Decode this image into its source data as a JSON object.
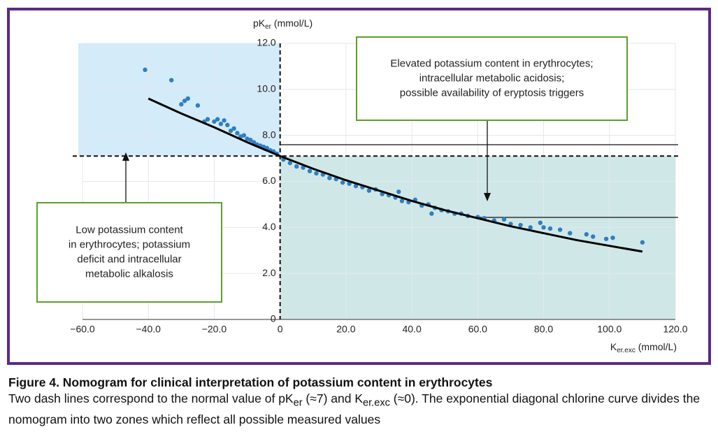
{
  "chart_data": {
    "type": "scatter",
    "y_label": {
      "main": "pK",
      "sub": "er",
      "unit": " (mmol/L)"
    },
    "x_label": {
      "main": "K",
      "sub": "er.exc",
      "unit": " (mmol/L)"
    },
    "xlim": [
      -60,
      120
    ],
    "xticks": [
      {
        "value": -60,
        "label": "−60.0"
      },
      {
        "value": -40,
        "label": "−40.0"
      },
      {
        "value": -20,
        "label": "−20.0"
      },
      0,
      {
        "value": 20,
        "label": "20.0"
      },
      {
        "value": 40,
        "label": "40.0"
      },
      {
        "value": 60,
        "label": "60.0"
      },
      {
        "value": 80,
        "label": "80.0"
      },
      {
        "value": 100,
        "label": "100.0"
      },
      {
        "value": 120,
        "label": "120.0"
      }
    ],
    "ylim": [
      0,
      12
    ],
    "yticks": [
      0,
      {
        "value": 2,
        "label": "2.0"
      },
      {
        "value": 4,
        "label": "4.0"
      },
      {
        "value": 6,
        "label": "6.0"
      },
      {
        "value": 8,
        "label": "8.0"
      },
      {
        "value": 10,
        "label": "10.0"
      },
      {
        "value": 12,
        "label": "12.0"
      }
    ],
    "grid": true,
    "color": "#2f7fc1",
    "x": [
      -41,
      -33,
      -30,
      -29,
      -28,
      -25,
      -23,
      -22,
      -20,
      -19,
      -18,
      -17,
      -16,
      -15,
      -14,
      -13,
      -12,
      -11,
      -10,
      -9,
      -8,
      -7,
      -6,
      -5,
      -4,
      -3,
      -2,
      -1,
      1,
      3,
      5,
      7,
      9,
      11,
      13,
      15,
      17,
      19,
      21,
      23,
      25,
      27,
      29,
      31,
      33,
      35,
      37,
      39,
      41,
      43,
      45,
      47,
      49,
      51,
      53,
      55,
      57,
      60,
      62,
      65,
      68,
      70,
      73,
      76,
      79,
      82,
      85,
      88,
      93,
      95,
      99,
      101,
      110,
      36,
      46,
      80
    ],
    "values": [
      10.85,
      10.4,
      9.35,
      9.5,
      9.6,
      9.3,
      8.6,
      8.7,
      8.6,
      8.7,
      8.5,
      8.65,
      8.45,
      8.2,
      8.3,
      8.1,
      7.95,
      8.0,
      7.85,
      7.8,
      7.7,
      7.6,
      7.55,
      7.5,
      7.45,
      7.35,
      7.3,
      7.2,
      6.95,
      6.8,
      6.65,
      6.6,
      6.45,
      6.35,
      6.3,
      6.15,
      6.1,
      5.95,
      5.9,
      5.8,
      5.75,
      5.6,
      5.65,
      5.45,
      5.4,
      5.3,
      5.15,
      5.1,
      5.2,
      4.95,
      5.0,
      4.85,
      4.75,
      4.7,
      4.6,
      4.6,
      4.5,
      4.45,
      4.4,
      4.3,
      4.35,
      4.15,
      4.1,
      4.0,
      4.2,
      3.95,
      3.9,
      3.75,
      3.7,
      3.6,
      3.5,
      3.55,
      3.35,
      5.55,
      4.6,
      4.0
    ],
    "curve": {
      "color": "#000000",
      "x": [
        -40,
        -30,
        -20,
        -10,
        0,
        10,
        20,
        30,
        40,
        50,
        60,
        70,
        80,
        90,
        100,
        110
      ],
      "values": [
        9.6,
        8.95,
        8.35,
        7.7,
        7.1,
        6.55,
        6.05,
        5.6,
        5.15,
        4.75,
        4.4,
        4.05,
        3.75,
        3.45,
        3.2,
        2.95
      ]
    },
    "reference_lines": [
      {
        "axis": "y",
        "value": 7.1
      },
      {
        "axis": "x",
        "value": 0
      }
    ],
    "annotations": [
      [
        "Elevated potassium content in erythrocytes;",
        "intracellular metabolic acidosis;",
        "possible availability of eryptosis triggers"
      ],
      [
        "Low potassium content",
        "in erythrocytes; potassium",
        "deficit and intracellular",
        "metabolic alkalosis"
      ]
    ],
    "caption": {
      "title": "Figure 4. Nomogram for clinical interpretation of potassium content in erythrocytes",
      "body": [
        "Two dash lines correspond to the normal value of pK",
        "er",
        " (≈7) and K",
        "er.exc",
        " (≈0). The exponential diagonal chlorine curve divides the nomogram into two zones which reflect all possible measured values"
      ]
    }
  }
}
